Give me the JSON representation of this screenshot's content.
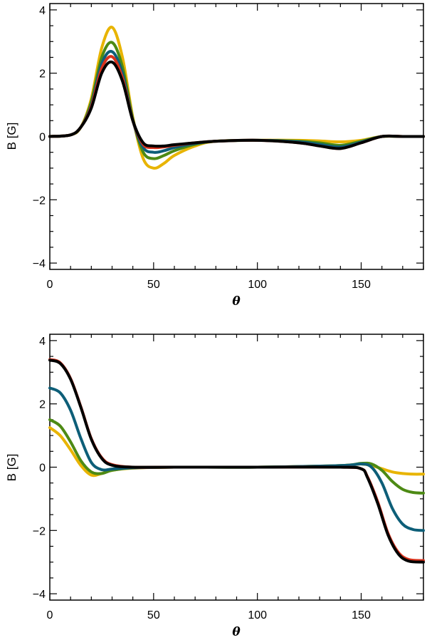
{
  "chart_data": [
    {
      "type": "line",
      "xlabel": "θ",
      "ylabel": "B [G]",
      "xlim": [
        0,
        180
      ],
      "ylim": [
        -4.2,
        4.2
      ],
      "xticks": [
        0,
        50,
        100,
        150
      ],
      "yticks": [
        -4,
        -2,
        0,
        2,
        4
      ],
      "xtick_labels": [
        "0",
        "50",
        "100",
        "150"
      ],
      "ytick_labels": [
        "−4",
        "−2",
        "0",
        "2",
        "4"
      ],
      "series": [
        {
          "name": "yellow",
          "color": "#e8b400",
          "x": [
            0,
            10,
            15,
            20,
            25,
            30,
            35,
            40,
            45,
            50,
            55,
            60,
            70,
            80,
            100,
            120,
            130,
            140,
            150,
            160,
            170,
            180
          ],
          "y": [
            0,
            0.05,
            0.3,
            1.2,
            2.8,
            3.45,
            2.5,
            0.6,
            -0.7,
            -1.0,
            -0.85,
            -0.6,
            -0.3,
            -0.15,
            -0.12,
            -0.12,
            -0.14,
            -0.17,
            -0.12,
            0,
            0,
            0
          ]
        },
        {
          "name": "green",
          "color": "#4d8a14",
          "x": [
            0,
            10,
            15,
            20,
            25,
            30,
            35,
            40,
            45,
            50,
            55,
            60,
            70,
            80,
            100,
            120,
            130,
            140,
            150,
            160,
            170,
            180
          ],
          "y": [
            0,
            0.05,
            0.3,
            1.1,
            2.5,
            2.97,
            2.2,
            0.55,
            -0.5,
            -0.7,
            -0.6,
            -0.45,
            -0.25,
            -0.15,
            -0.12,
            -0.15,
            -0.2,
            -0.28,
            -0.15,
            0,
            0,
            0
          ]
        },
        {
          "name": "teal",
          "color": "#0d5e78",
          "x": [
            0,
            10,
            15,
            20,
            25,
            30,
            35,
            40,
            45,
            50,
            55,
            60,
            70,
            80,
            100,
            120,
            130,
            140,
            150,
            160,
            170,
            180
          ],
          "y": [
            0,
            0.05,
            0.3,
            1.0,
            2.3,
            2.68,
            2.0,
            0.5,
            -0.35,
            -0.5,
            -0.45,
            -0.35,
            -0.22,
            -0.15,
            -0.12,
            -0.17,
            -0.25,
            -0.33,
            -0.18,
            0,
            0,
            0
          ]
        },
        {
          "name": "red",
          "color": "#d8321c",
          "x": [
            0,
            10,
            15,
            20,
            25,
            30,
            35,
            40,
            45,
            50,
            55,
            60,
            70,
            80,
            100,
            120,
            130,
            140,
            150,
            160,
            170,
            180
          ],
          "y": [
            0,
            0.05,
            0.3,
            0.95,
            2.15,
            2.52,
            1.85,
            0.5,
            -0.25,
            -0.35,
            -0.33,
            -0.28,
            -0.2,
            -0.15,
            -0.12,
            -0.2,
            -0.3,
            -0.38,
            -0.2,
            0,
            0,
            0
          ]
        },
        {
          "name": "black",
          "color": "#000000",
          "x": [
            0,
            10,
            15,
            20,
            25,
            30,
            35,
            40,
            45,
            50,
            55,
            60,
            70,
            80,
            100,
            120,
            130,
            140,
            150,
            160,
            170,
            180
          ],
          "y": [
            0,
            0.05,
            0.3,
            0.9,
            2.0,
            2.35,
            1.75,
            0.5,
            -0.2,
            -0.3,
            -0.3,
            -0.26,
            -0.2,
            -0.15,
            -0.12,
            -0.2,
            -0.3,
            -0.38,
            -0.2,
            0,
            0,
            0
          ]
        }
      ]
    },
    {
      "type": "line",
      "xlabel": "θ",
      "ylabel": "B [G]",
      "xlim": [
        0,
        180
      ],
      "ylim": [
        -4.2,
        4.2
      ],
      "xticks": [
        0,
        50,
        100,
        150
      ],
      "yticks": [
        -4,
        -2,
        0,
        2,
        4
      ],
      "xtick_labels": [
        "0",
        "50",
        "100",
        "150"
      ],
      "ytick_labels": [
        "−4",
        "−2",
        "0",
        "2",
        "4"
      ],
      "series": [
        {
          "name": "yellow",
          "color": "#e8b400",
          "x": [
            0,
            5,
            10,
            15,
            20,
            25,
            30,
            40,
            60,
            100,
            140,
            150,
            155,
            160,
            165,
            170,
            175,
            180
          ],
          "y": [
            1.25,
            1.0,
            0.55,
            0.05,
            -0.25,
            -0.2,
            -0.1,
            -0.03,
            0,
            0,
            0.05,
            0.1,
            0.05,
            -0.05,
            -0.15,
            -0.2,
            -0.22,
            -0.22
          ]
        },
        {
          "name": "green",
          "color": "#4d8a14",
          "x": [
            0,
            5,
            10,
            15,
            20,
            25,
            30,
            40,
            60,
            100,
            140,
            150,
            155,
            160,
            165,
            170,
            175,
            180
          ],
          "y": [
            1.5,
            1.3,
            0.8,
            0.2,
            -0.15,
            -0.2,
            -0.1,
            -0.02,
            0,
            0,
            0.05,
            0.12,
            0.1,
            -0.1,
            -0.45,
            -0.7,
            -0.8,
            -0.82
          ]
        },
        {
          "name": "teal",
          "color": "#0d5e78",
          "x": [
            0,
            5,
            10,
            15,
            20,
            25,
            30,
            40,
            60,
            100,
            140,
            150,
            155,
            160,
            165,
            170,
            175,
            180
          ],
          "y": [
            2.5,
            2.35,
            1.8,
            0.9,
            0.15,
            -0.08,
            -0.06,
            -0.02,
            0,
            0,
            0.05,
            0.1,
            0,
            -0.5,
            -1.3,
            -1.8,
            -1.97,
            -2.0
          ]
        },
        {
          "name": "red",
          "color": "#d8321c",
          "x": [
            0,
            5,
            10,
            15,
            20,
            25,
            30,
            40,
            60,
            100,
            140,
            150,
            153,
            158,
            163,
            168,
            173,
            180
          ],
          "y": [
            3.4,
            3.3,
            2.8,
            1.9,
            0.9,
            0.3,
            0.08,
            0,
            0,
            0,
            0,
            -0.05,
            -0.3,
            -1.1,
            -2.1,
            -2.7,
            -2.92,
            -2.95
          ]
        },
        {
          "name": "black",
          "color": "#000000",
          "x": [
            0,
            5,
            10,
            15,
            20,
            25,
            30,
            40,
            60,
            100,
            140,
            150,
            153,
            158,
            163,
            168,
            173,
            180
          ],
          "y": [
            3.38,
            3.28,
            2.78,
            1.88,
            0.88,
            0.28,
            0.06,
            0,
            0,
            0,
            0,
            -0.05,
            -0.32,
            -1.15,
            -2.15,
            -2.75,
            -2.97,
            -3.0
          ]
        }
      ]
    }
  ]
}
